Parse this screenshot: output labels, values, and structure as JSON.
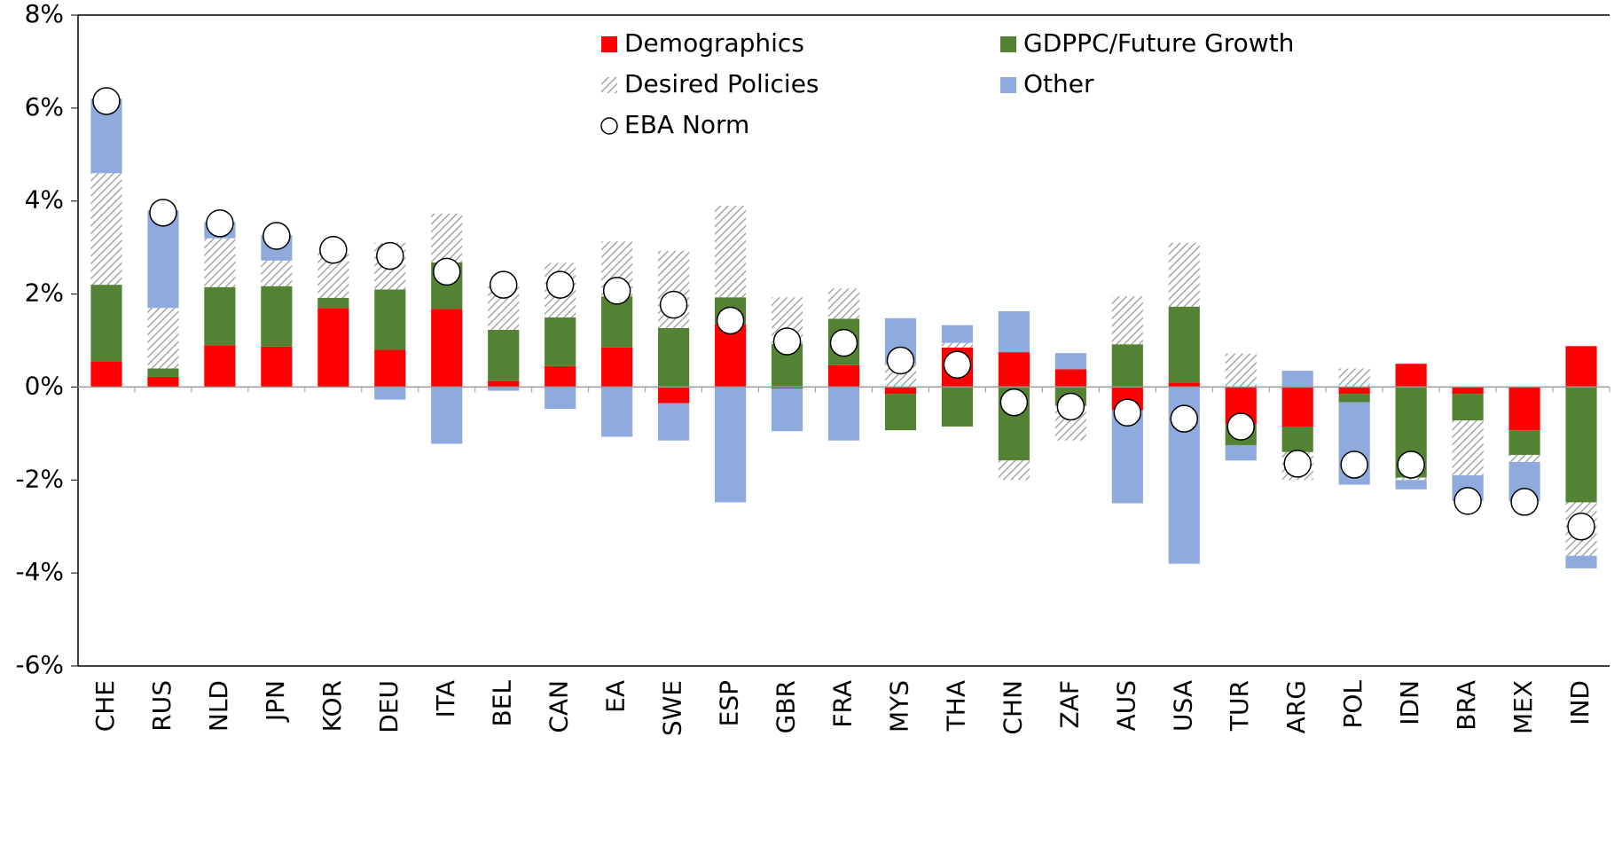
{
  "chart_data": {
    "type": "stacked_bar",
    "categories": [
      "CHE",
      "RUS",
      "NLD",
      "JPN",
      "KOR",
      "DEU",
      "ITA",
      "BEL",
      "CAN",
      "EA",
      "SWE",
      "ESP",
      "GBR",
      "FRA",
      "MYS",
      "THA",
      "CHN",
      "ZAF",
      "AUS",
      "USA",
      "TUR",
      "ARG",
      "POL",
      "IDN",
      "BRA",
      "MEX",
      "IND"
    ],
    "series": [
      {
        "name": "Demographics",
        "color": "#ff0000",
        "values": [
          0.55,
          0.22,
          0.9,
          0.87,
          1.7,
          0.8,
          1.68,
          0.13,
          0.45,
          0.85,
          -0.35,
          1.35,
          -0.03,
          0.47,
          -0.15,
          0.85,
          0.75,
          0.38,
          -0.5,
          0.1,
          -0.8,
          -0.85,
          -0.15,
          0.5,
          -0.15,
          -0.93,
          0.88
        ]
      },
      {
        "name": "GDPPC/Future Growth",
        "color": "#548235",
        "values": [
          1.65,
          0.18,
          1.25,
          1.3,
          0.22,
          1.3,
          1.0,
          1.1,
          1.05,
          1.1,
          1.27,
          0.58,
          0.93,
          1.0,
          -0.78,
          -0.85,
          -1.58,
          -0.4,
          0.92,
          1.63,
          -0.45,
          -0.55,
          -0.18,
          -1.95,
          -0.57,
          -0.53,
          -2.48
        ]
      },
      {
        "name": "Desired Policies",
        "color": "#a6a6a6",
        "pattern": "hatch",
        "values": [
          2.4,
          1.3,
          1.05,
          0.55,
          1.0,
          1.0,
          1.05,
          0.95,
          1.17,
          1.18,
          1.66,
          1.97,
          1.0,
          0.65,
          0.5,
          0.1,
          -0.42,
          -0.75,
          1.03,
          1.37,
          0.72,
          -0.6,
          0.4,
          -0.05,
          -1.18,
          -0.15,
          -1.15
        ]
      },
      {
        "name": "Other",
        "color": "#8faadc",
        "values": [
          1.6,
          2.1,
          0.35,
          0.55,
          0,
          -0.27,
          -1.22,
          -0.08,
          -0.47,
          -1.07,
          -0.8,
          -2.48,
          -0.92,
          -1.15,
          0.98,
          0.38,
          0.88,
          0.35,
          -2.0,
          -3.8,
          -0.33,
          0.35,
          -1.77,
          -0.2,
          -0.55,
          -0.85,
          -0.27
        ]
      }
    ],
    "points": {
      "name": "EBA Norm",
      "values": [
        6.15,
        3.75,
        3.52,
        3.25,
        2.95,
        2.82,
        2.48,
        2.2,
        2.2,
        2.07,
        1.77,
        1.43,
        0.98,
        0.95,
        0.57,
        0.48,
        -0.33,
        -0.42,
        -0.55,
        -0.68,
        -0.85,
        -1.65,
        -1.67,
        -1.67,
        -2.45,
        -2.47,
        -3.0
      ]
    },
    "ylim": [
      -6,
      8
    ],
    "yticks": [
      {
        "value": -6,
        "label": "-6%"
      },
      {
        "value": -4,
        "label": "-4%"
      },
      {
        "value": -2,
        "label": "-2%"
      },
      {
        "value": 0,
        "label": "0%"
      },
      {
        "value": 2,
        "label": "2%"
      },
      {
        "value": 4,
        "label": "4%"
      },
      {
        "value": 6,
        "label": "6%"
      },
      {
        "value": 8,
        "label": "8%"
      }
    ],
    "grid": false,
    "legend": "top"
  }
}
